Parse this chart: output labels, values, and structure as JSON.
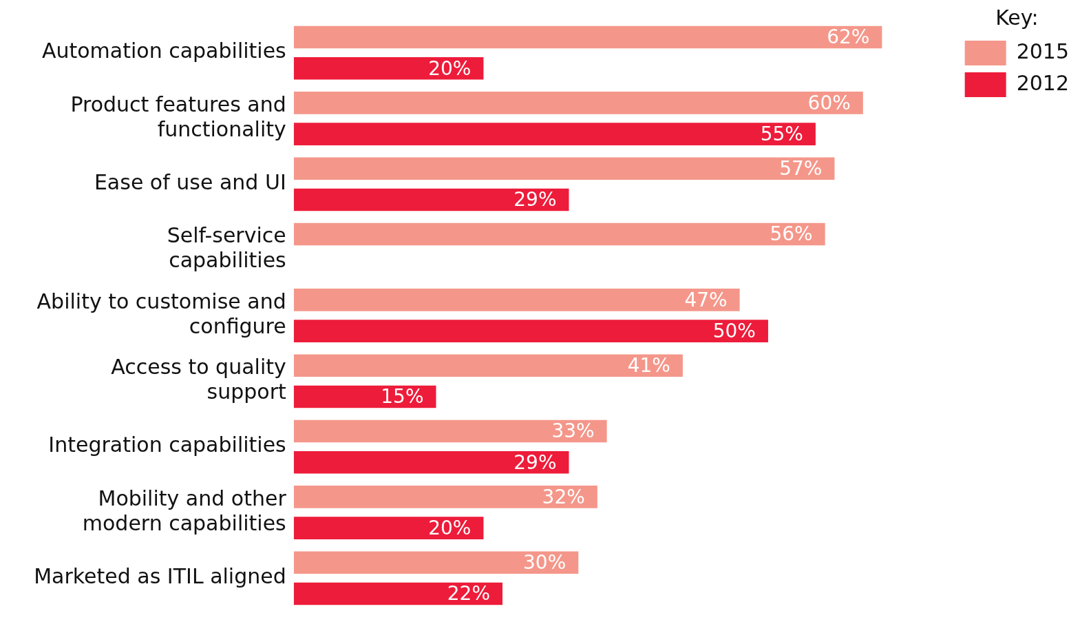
{
  "chart_data": {
    "type": "bar",
    "orientation": "horizontal",
    "categories": [
      "Automation capabilities",
      "Product features and functionality",
      "Ease of use and UI",
      "Self-service capabilities",
      "Ability to customise and configure",
      "Access to quality support",
      "Integration capabilities",
      "Mobility and other modern capabilities",
      "Marketed as ITIL aligned"
    ],
    "series": [
      {
        "name": "2015",
        "color": "#f4978a",
        "values": [
          62,
          60,
          57,
          56,
          47,
          41,
          33,
          32,
          30
        ],
        "value_labels": [
          "62%",
          "60%",
          "57%",
          "56%",
          "47%",
          "41%",
          "33%",
          "32%",
          "30%"
        ]
      },
      {
        "name": "2012",
        "color": "#ed1c3a",
        "values": [
          20,
          55,
          29,
          null,
          50,
          15,
          29,
          20,
          22
        ],
        "value_labels": [
          "20%",
          "55%",
          "29%",
          null,
          "50%",
          "15%",
          "29%",
          "20%",
          "22%"
        ]
      }
    ],
    "legend_title": "Key:",
    "legend": "top right",
    "grid": false,
    "tick_labels": "y"
  }
}
